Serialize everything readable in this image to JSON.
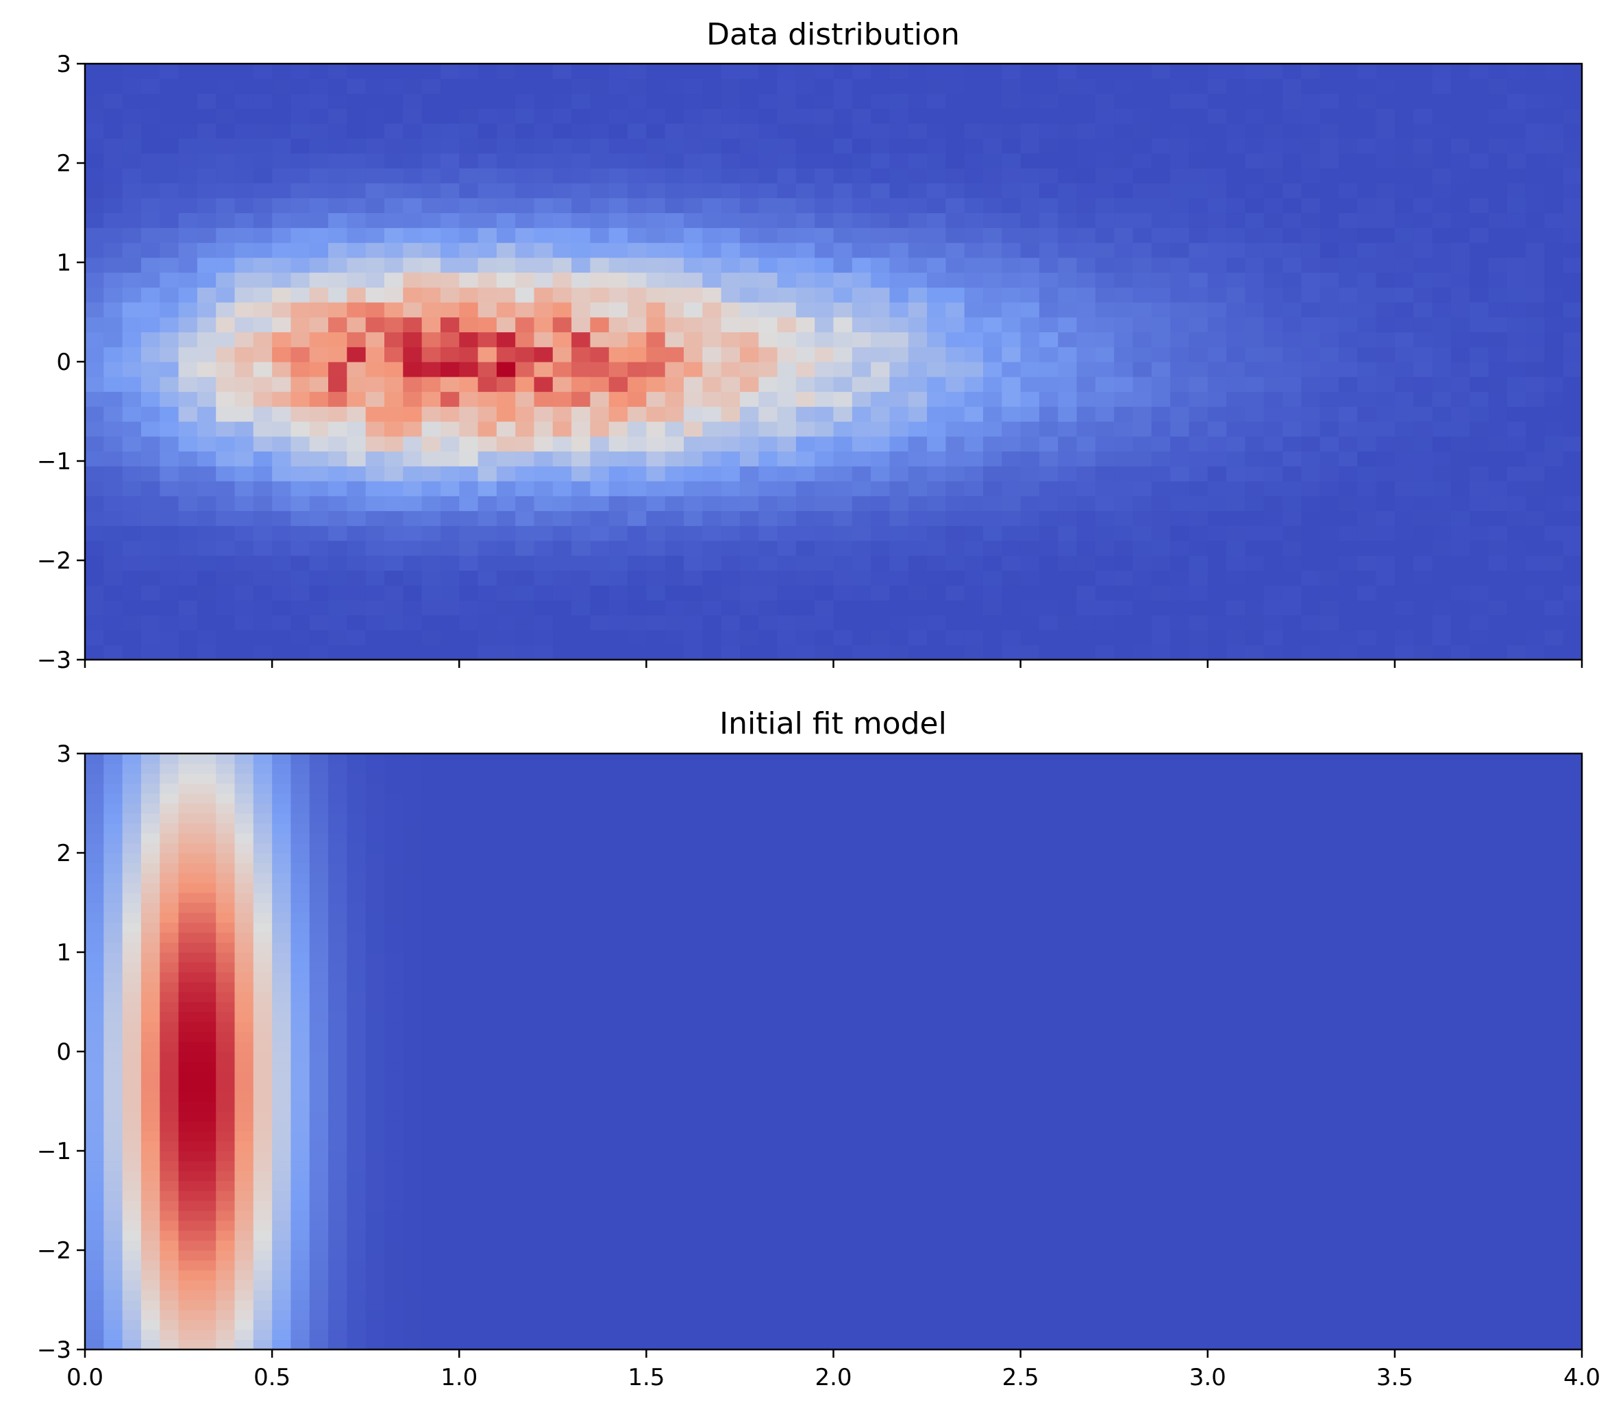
{
  "chart_data": [
    {
      "type": "heatmap",
      "title": "Data distribution",
      "xlabel": "",
      "ylabel": "",
      "xlim": [
        0,
        4
      ],
      "ylim": [
        -3,
        3
      ],
      "x_ticks": [
        0.0,
        0.5,
        1.0,
        1.5,
        2.0,
        2.5,
        3.0,
        3.5,
        4.0
      ],
      "x_tick_labels_shown": false,
      "y_ticks": [
        3,
        2,
        1,
        0,
        -1,
        -2,
        -3
      ],
      "y_tick_labels": [
        "3",
        "2",
        "1",
        "0",
        "−1",
        "−2",
        "−3"
      ],
      "colormap": "coolwarm",
      "grid": false,
      "bins": [
        80,
        40
      ],
      "density": {
        "kind": "noisy-histogram",
        "x_peak": 0.9,
        "x_left_width": 0.5,
        "x_right_width": 1.0,
        "y_center": 0.0,
        "y_width": 0.8,
        "noise": 0.18
      },
      "peak_location": [
        0.9,
        0.0
      ]
    },
    {
      "type": "heatmap",
      "title": "Initial fit model",
      "xlabel": "",
      "ylabel": "",
      "xlim": [
        0,
        4
      ],
      "ylim": [
        -3,
        3
      ],
      "x_ticks": [
        0.0,
        0.5,
        1.0,
        1.5,
        2.0,
        2.5,
        3.0,
        3.5,
        4.0
      ],
      "x_tick_labels": [
        "0.0",
        "0.5",
        "1.0",
        "1.5",
        "2.0",
        "2.5",
        "3.0",
        "3.5",
        "4.0"
      ],
      "y_ticks": [
        3,
        2,
        1,
        0,
        -1,
        -2,
        -3
      ],
      "y_tick_labels": [
        "3",
        "2",
        "1",
        "0",
        "−1",
        "−2",
        "−3"
      ],
      "colormap": "coolwarm",
      "grid": false,
      "bins": [
        80,
        60
      ],
      "density": {
        "kind": "smooth-model",
        "x_peak": 0.3,
        "x_width": 0.17,
        "y_center": -0.3,
        "y_width": 2.6
      },
      "peak_location": [
        0.3,
        -0.3
      ]
    }
  ],
  "colors": {
    "cmap_low": "#3b4cc0",
    "cmap_mid": "#dddddd",
    "cmap_high": "#b40426"
  }
}
